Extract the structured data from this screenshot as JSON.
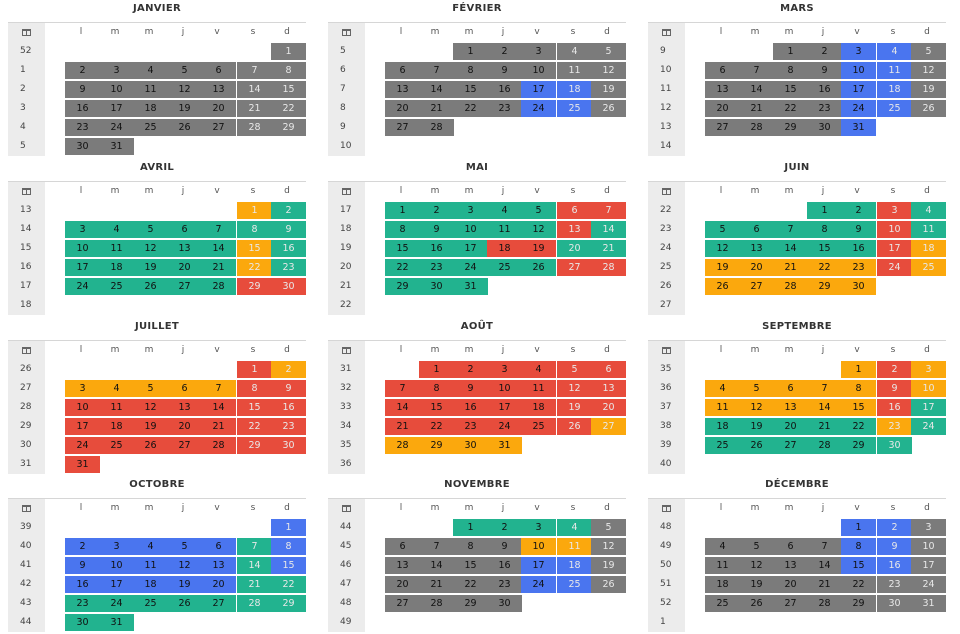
{
  "weekday_headers": [
    "l",
    "m",
    "m",
    "j",
    "v",
    "s",
    "d"
  ],
  "icons": {
    "week_column_icon": "calendar-icon"
  },
  "colors": {
    "gray": "#7b7b7b",
    "green": "#22b38f",
    "orange": "#fba80d",
    "red": "#e74c3c",
    "blue": "#4a75ef",
    "week_column_bg": "#ececec"
  },
  "months": [
    {
      "name": "JANVIER",
      "weeks": [
        52,
        1,
        2,
        3,
        4,
        5
      ],
      "start": 6,
      "days": 31,
      "segments": [
        [
          1,
          31,
          "gray"
        ]
      ]
    },
    {
      "name": "FÉVRIER",
      "weeks": [
        5,
        6,
        7,
        8,
        9,
        10
      ],
      "start": 2,
      "days": 28,
      "segments": [
        [
          1,
          16,
          "gray"
        ],
        [
          17,
          18,
          "blue"
        ],
        [
          19,
          23,
          "gray"
        ],
        [
          24,
          25,
          "blue"
        ],
        [
          26,
          28,
          "gray"
        ]
      ]
    },
    {
      "name": "MARS",
      "weeks": [
        9,
        10,
        11,
        12,
        13,
        14
      ],
      "start": 2,
      "days": 31,
      "segments": [
        [
          1,
          2,
          "gray"
        ],
        [
          3,
          4,
          "blue"
        ],
        [
          5,
          9,
          "gray"
        ],
        [
          10,
          11,
          "blue"
        ],
        [
          12,
          16,
          "gray"
        ],
        [
          17,
          18,
          "blue"
        ],
        [
          19,
          23,
          "gray"
        ],
        [
          24,
          25,
          "blue"
        ],
        [
          26,
          30,
          "gray"
        ],
        [
          31,
          31,
          "blue"
        ]
      ]
    },
    {
      "name": "AVRIL",
      "weeks": [
        13,
        14,
        15,
        16,
        17,
        18
      ],
      "start": 5,
      "days": 30,
      "segments": [
        [
          1,
          1,
          "orange"
        ],
        [
          2,
          14,
          "green"
        ],
        [
          15,
          15,
          "orange"
        ],
        [
          16,
          21,
          "green"
        ],
        [
          22,
          22,
          "orange"
        ],
        [
          23,
          28,
          "green"
        ],
        [
          29,
          30,
          "red"
        ]
      ]
    },
    {
      "name": "MAI",
      "weeks": [
        17,
        18,
        19,
        20,
        21,
        22
      ],
      "start": 0,
      "days": 31,
      "segments": [
        [
          1,
          5,
          "green"
        ],
        [
          6,
          7,
          "red"
        ],
        [
          8,
          12,
          "green"
        ],
        [
          13,
          13,
          "red"
        ],
        [
          14,
          17,
          "green"
        ],
        [
          18,
          19,
          "red"
        ],
        [
          20,
          26,
          "green"
        ],
        [
          27,
          28,
          "red"
        ],
        [
          29,
          31,
          "green"
        ]
      ]
    },
    {
      "name": "JUIN",
      "weeks": [
        22,
        23,
        24,
        25,
        26,
        27
      ],
      "start": 3,
      "days": 30,
      "segments": [
        [
          1,
          2,
          "green"
        ],
        [
          3,
          3,
          "red"
        ],
        [
          4,
          9,
          "green"
        ],
        [
          10,
          10,
          "red"
        ],
        [
          11,
          16,
          "green"
        ],
        [
          17,
          17,
          "red"
        ],
        [
          18,
          18,
          "orange"
        ],
        [
          19,
          23,
          "orange"
        ],
        [
          24,
          24,
          "red"
        ],
        [
          25,
          30,
          "orange"
        ]
      ]
    },
    {
      "name": "JUILLET",
      "weeks": [
        26,
        27,
        28,
        29,
        30,
        31
      ],
      "start": 5,
      "days": 31,
      "segments": [
        [
          1,
          1,
          "red"
        ],
        [
          2,
          7,
          "orange"
        ],
        [
          8,
          31,
          "red"
        ]
      ]
    },
    {
      "name": "AOÛT",
      "weeks": [
        31,
        32,
        33,
        34,
        35,
        36
      ],
      "start": 1,
      "days": 31,
      "segments": [
        [
          1,
          26,
          "red"
        ],
        [
          27,
          31,
          "orange"
        ]
      ]
    },
    {
      "name": "SEPTEMBRE",
      "weeks": [
        35,
        36,
        37,
        38,
        39,
        40
      ],
      "start": 4,
      "days": 30,
      "segments": [
        [
          1,
          1,
          "orange"
        ],
        [
          2,
          2,
          "red"
        ],
        [
          3,
          8,
          "orange"
        ],
        [
          9,
          9,
          "red"
        ],
        [
          10,
          15,
          "orange"
        ],
        [
          16,
          16,
          "red"
        ],
        [
          17,
          17,
          "green"
        ],
        [
          18,
          22,
          "green"
        ],
        [
          23,
          23,
          "orange"
        ],
        [
          24,
          30,
          "green"
        ]
      ]
    },
    {
      "name": "OCTOBRE",
      "weeks": [
        39,
        40,
        41,
        42,
        43,
        44
      ],
      "start": 6,
      "days": 31,
      "segments": [
        [
          1,
          6,
          "blue"
        ],
        [
          7,
          7,
          "green"
        ],
        [
          8,
          13,
          "blue"
        ],
        [
          14,
          14,
          "green"
        ],
        [
          15,
          20,
          "blue"
        ],
        [
          21,
          31,
          "green"
        ]
      ]
    },
    {
      "name": "NOVEMBRE",
      "weeks": [
        44,
        45,
        46,
        47,
        48,
        49
      ],
      "start": 2,
      "days": 30,
      "segments": [
        [
          1,
          4,
          "green"
        ],
        [
          5,
          9,
          "gray"
        ],
        [
          10,
          11,
          "orange"
        ],
        [
          12,
          16,
          "gray"
        ],
        [
          17,
          18,
          "blue"
        ],
        [
          19,
          23,
          "gray"
        ],
        [
          24,
          25,
          "blue"
        ],
        [
          26,
          30,
          "gray"
        ]
      ]
    },
    {
      "name": "DÉCEMBRE",
      "weeks": [
        48,
        49,
        50,
        51,
        52,
        1
      ],
      "start": 4,
      "days": 31,
      "segments": [
        [
          1,
          2,
          "blue"
        ],
        [
          3,
          7,
          "gray"
        ],
        [
          8,
          9,
          "blue"
        ],
        [
          10,
          14,
          "gray"
        ],
        [
          15,
          16,
          "blue"
        ],
        [
          17,
          31,
          "gray"
        ]
      ]
    }
  ]
}
